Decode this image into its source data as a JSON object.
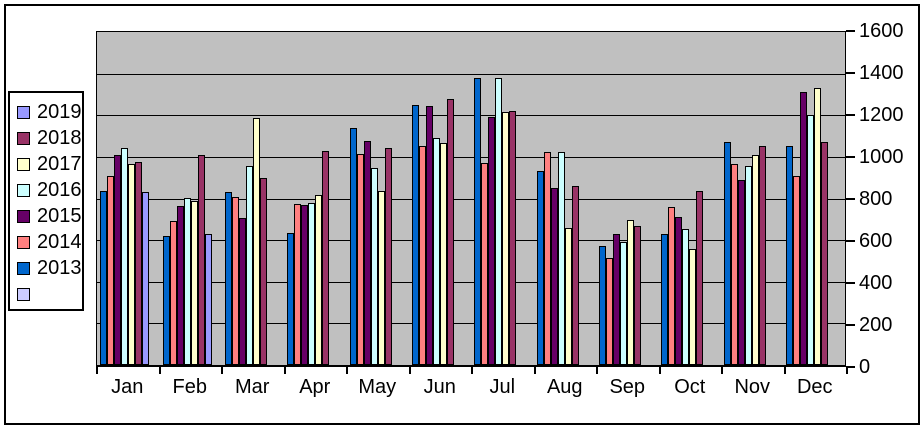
{
  "chart_data": {
    "type": "bar",
    "title": "",
    "xlabel": "",
    "ylabel": "",
    "plot_bg": "#C0C0C0",
    "grid": true,
    "categories": [
      "Jan",
      "Feb",
      "Mar",
      "Apr",
      "May",
      "Jun",
      "Jul",
      "Aug",
      "Sep",
      "Oct",
      "Nov",
      "Dec"
    ],
    "series": [
      {
        "name": "2013",
        "color": "#0066CC",
        "values": [
          835,
          620,
          830,
          635,
          1140,
          1250,
          1380,
          930,
          570,
          630,
          1070,
          1050
        ]
      },
      {
        "name": "2014",
        "color": "#FF8080",
        "values": [
          910,
          690,
          805,
          775,
          1015,
          1050,
          970,
          1025,
          515,
          760,
          965,
          910
        ]
      },
      {
        "name": "2015",
        "color": "#660066",
        "values": [
          1010,
          765,
          705,
          770,
          1075,
          1245,
          1190,
          850,
          630,
          710,
          890,
          1310
        ]
      },
      {
        "name": "2016",
        "color": "#CCFFFF",
        "values": [
          1045,
          800,
          955,
          780,
          945,
          1090,
          1380,
          1025,
          590,
          655,
          955,
          1200
        ]
      },
      {
        "name": "2017",
        "color": "#FFFFCC",
        "values": [
          965,
          790,
          1185,
          815,
          835,
          1065,
          1215,
          660,
          695,
          555,
          1010,
          1330
        ]
      },
      {
        "name": "2018",
        "color": "#993366",
        "values": [
          975,
          1010,
          900,
          1030,
          1045,
          1280,
          1220,
          860,
          670,
          835,
          1050,
          1070
        ]
      },
      {
        "name": "2019",
        "color": "#9999FF",
        "values": [
          830,
          630,
          null,
          null,
          null,
          null,
          null,
          null,
          null,
          null,
          null,
          null
        ]
      },
      {
        "name": "",
        "color": "#CCCCFF",
        "values": [
          null,
          null,
          null,
          null,
          null,
          null,
          null,
          null,
          null,
          null,
          null,
          null
        ]
      }
    ],
    "legend": {
      "position": "left",
      "entries": [
        {
          "label": "2019",
          "color": "#9999FF"
        },
        {
          "label": "2018",
          "color": "#993366"
        },
        {
          "label": "2017",
          "color": "#FFFFCC"
        },
        {
          "label": "2016",
          "color": "#CCFFFF"
        },
        {
          "label": "2015",
          "color": "#660066"
        },
        {
          "label": "2014",
          "color": "#FF8080"
        },
        {
          "label": "2013",
          "color": "#0066CC"
        },
        {
          "label": "",
          "color": "#CCCCFF"
        }
      ]
    },
    "y_axis": {
      "side": "right",
      "min": 0,
      "max": 1600,
      "tick_step": 200,
      "ticks": [
        0,
        200,
        400,
        600,
        800,
        1000,
        1200,
        1400,
        1600
      ]
    }
  }
}
